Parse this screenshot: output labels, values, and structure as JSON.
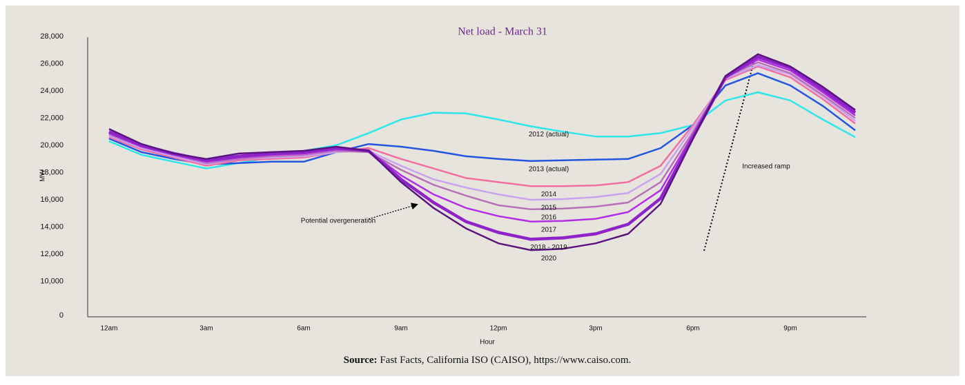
{
  "chart_data": {
    "type": "line",
    "title": "Net load - March 31",
    "x_label": "Hour",
    "y_label": "MW",
    "categories": [
      "12am",
      null,
      null,
      "3am",
      null,
      null,
      "6am",
      null,
      null,
      "9am",
      null,
      null,
      "12pm",
      null,
      null,
      "3pm",
      null,
      null,
      "6pm",
      null,
      null,
      "9pm",
      null,
      null
    ],
    "ylim": [
      0,
      28000
    ],
    "axis_break": [
      0,
      7500
    ],
    "yticks": [
      {
        "value": 0,
        "label": "0"
      },
      {
        "value": 10000,
        "label": "10,000"
      },
      {
        "value": 12000,
        "label": "12,000"
      },
      {
        "value": 14000,
        "label": "14,000"
      },
      {
        "value": 16000,
        "label": "16,000"
      },
      {
        "value": 18000,
        "label": "18,000"
      },
      {
        "value": 20000,
        "label": "20,000"
      },
      {
        "value": 22000,
        "label": "22,000"
      },
      {
        "value": 24000,
        "label": "24,000"
      },
      {
        "value": 26000,
        "label": "26,000"
      },
      {
        "value": 28000,
        "label": "28,000"
      }
    ],
    "series": [
      {
        "name": "2012 (actual)",
        "color": "#2ee6ea",
        "line_width": 2.5,
        "values": [
          20300,
          19300,
          18800,
          18300,
          18700,
          19100,
          19600,
          20000,
          20900,
          21900,
          22400,
          22350,
          21900,
          21400,
          21000,
          20650,
          20650,
          20900,
          21500,
          23300,
          23900,
          23300,
          21900,
          20600
        ]
      },
      {
        "name": "2013 (actual)",
        "color": "#2455e0",
        "line_width": 2.5,
        "values": [
          20500,
          19500,
          19000,
          18600,
          18700,
          18800,
          18800,
          19500,
          20100,
          19900,
          19600,
          19200,
          19000,
          18850,
          18900,
          18950,
          19000,
          19800,
          21500,
          24400,
          25300,
          24400,
          22900,
          21100
        ]
      },
      {
        "name": "2014",
        "color": "#f06ea2",
        "line_width": 2.5,
        "values": [
          20600,
          19700,
          19100,
          18500,
          18900,
          19000,
          19100,
          19500,
          19800,
          19000,
          18300,
          17600,
          17300,
          17000,
          17000,
          17050,
          17300,
          18500,
          21500,
          24800,
          25800,
          25000,
          23400,
          21600
        ]
      },
      {
        "name": "2015",
        "color": "#c9a2f0",
        "line_width": 2.5,
        "values": [
          20700,
          19800,
          19200,
          18600,
          19000,
          19100,
          19200,
          19500,
          19600,
          18500,
          17500,
          16900,
          16400,
          16000,
          16050,
          16200,
          16500,
          17900,
          21300,
          24900,
          25900,
          25200,
          23600,
          21800
        ]
      },
      {
        "name": "2016",
        "color": "#b870b8",
        "line_width": 2.5,
        "values": [
          20800,
          19900,
          19300,
          18700,
          19000,
          19200,
          19300,
          19600,
          19500,
          18200,
          17100,
          16300,
          15600,
          15300,
          15350,
          15500,
          15800,
          17300,
          21000,
          25000,
          26100,
          25300,
          23700,
          22000
        ]
      },
      {
        "name": "2017",
        "color": "#b22ee6",
        "line_width": 2.5,
        "values": [
          20900,
          19900,
          19300,
          18800,
          19100,
          19300,
          19400,
          19700,
          19600,
          17800,
          16400,
          15400,
          14800,
          14400,
          14450,
          14600,
          15100,
          16700,
          20800,
          25000,
          26300,
          25500,
          23900,
          22200
        ]
      },
      {
        "name": "2018 - 2019",
        "color": "#8e24c8",
        "line_width": 4.5,
        "values": [
          21000,
          20000,
          19400,
          18900,
          19200,
          19400,
          19500,
          19800,
          19600,
          17500,
          15800,
          14400,
          13600,
          13100,
          13200,
          13500,
          14200,
          16100,
          20600,
          25000,
          26500,
          25700,
          24100,
          22400
        ]
      },
      {
        "name": "2020",
        "color": "#5a1480",
        "line_width": 2.5,
        "values": [
          21200,
          20100,
          19400,
          19000,
          19400,
          19500,
          19600,
          19900,
          19600,
          17300,
          15400,
          13900,
          12800,
          12300,
          12400,
          12800,
          13500,
          15700,
          20500,
          25100,
          26700,
          25800,
          24300,
          22600
        ]
      }
    ],
    "annotations": [
      "Potential overgeneration",
      "Increased ramp"
    ],
    "source_label": "Source:",
    "source": "Fast Facts, California ISO (CAISO), https://www.caiso.com."
  }
}
